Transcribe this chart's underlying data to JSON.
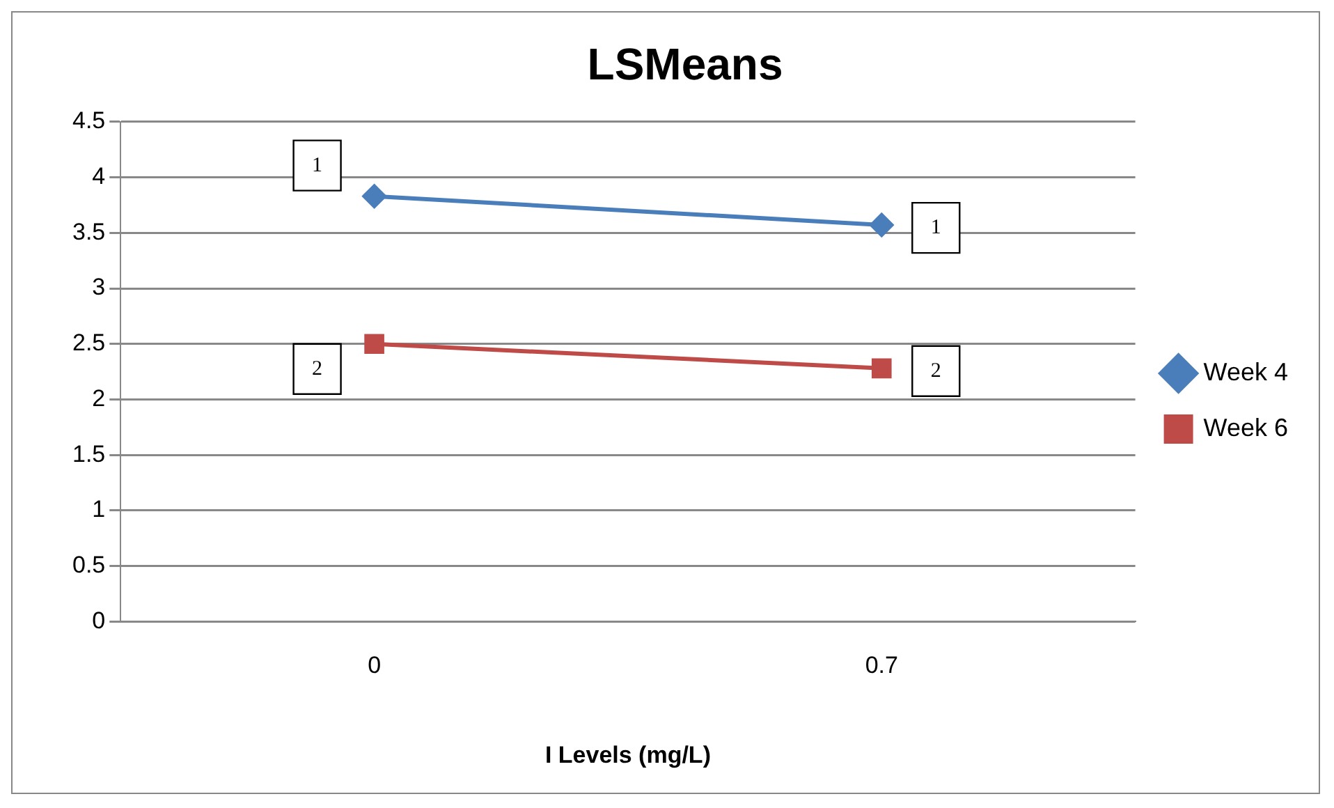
{
  "chart_data": {
    "type": "line",
    "title": "LSMeans",
    "xlabel": "I Levels (mg/L)",
    "categories": [
      "0",
      "0.7"
    ],
    "series": [
      {
        "name": "Week 4",
        "color": "#4a7ebb",
        "values": [
          3.83,
          3.57
        ],
        "marker": "diamond"
      },
      {
        "name": "Week 6",
        "color": "#be4b48",
        "values": [
          2.5,
          2.28
        ],
        "marker": "square"
      }
    ],
    "ylim": [
      0,
      4.5
    ],
    "yticks": [
      0,
      0.5,
      1,
      1.5,
      2,
      2.5,
      3,
      3.5,
      4,
      4.5
    ],
    "grid": "y",
    "legend": "right",
    "annotations": [
      {
        "text": "1",
        "x": "0",
        "y": 3.83
      },
      {
        "text": "1",
        "x": "0.7",
        "y": 3.57
      },
      {
        "text": "2",
        "x": "0",
        "y": 2.5
      },
      {
        "text": "2",
        "x": "0.7",
        "y": 2.28
      }
    ]
  }
}
